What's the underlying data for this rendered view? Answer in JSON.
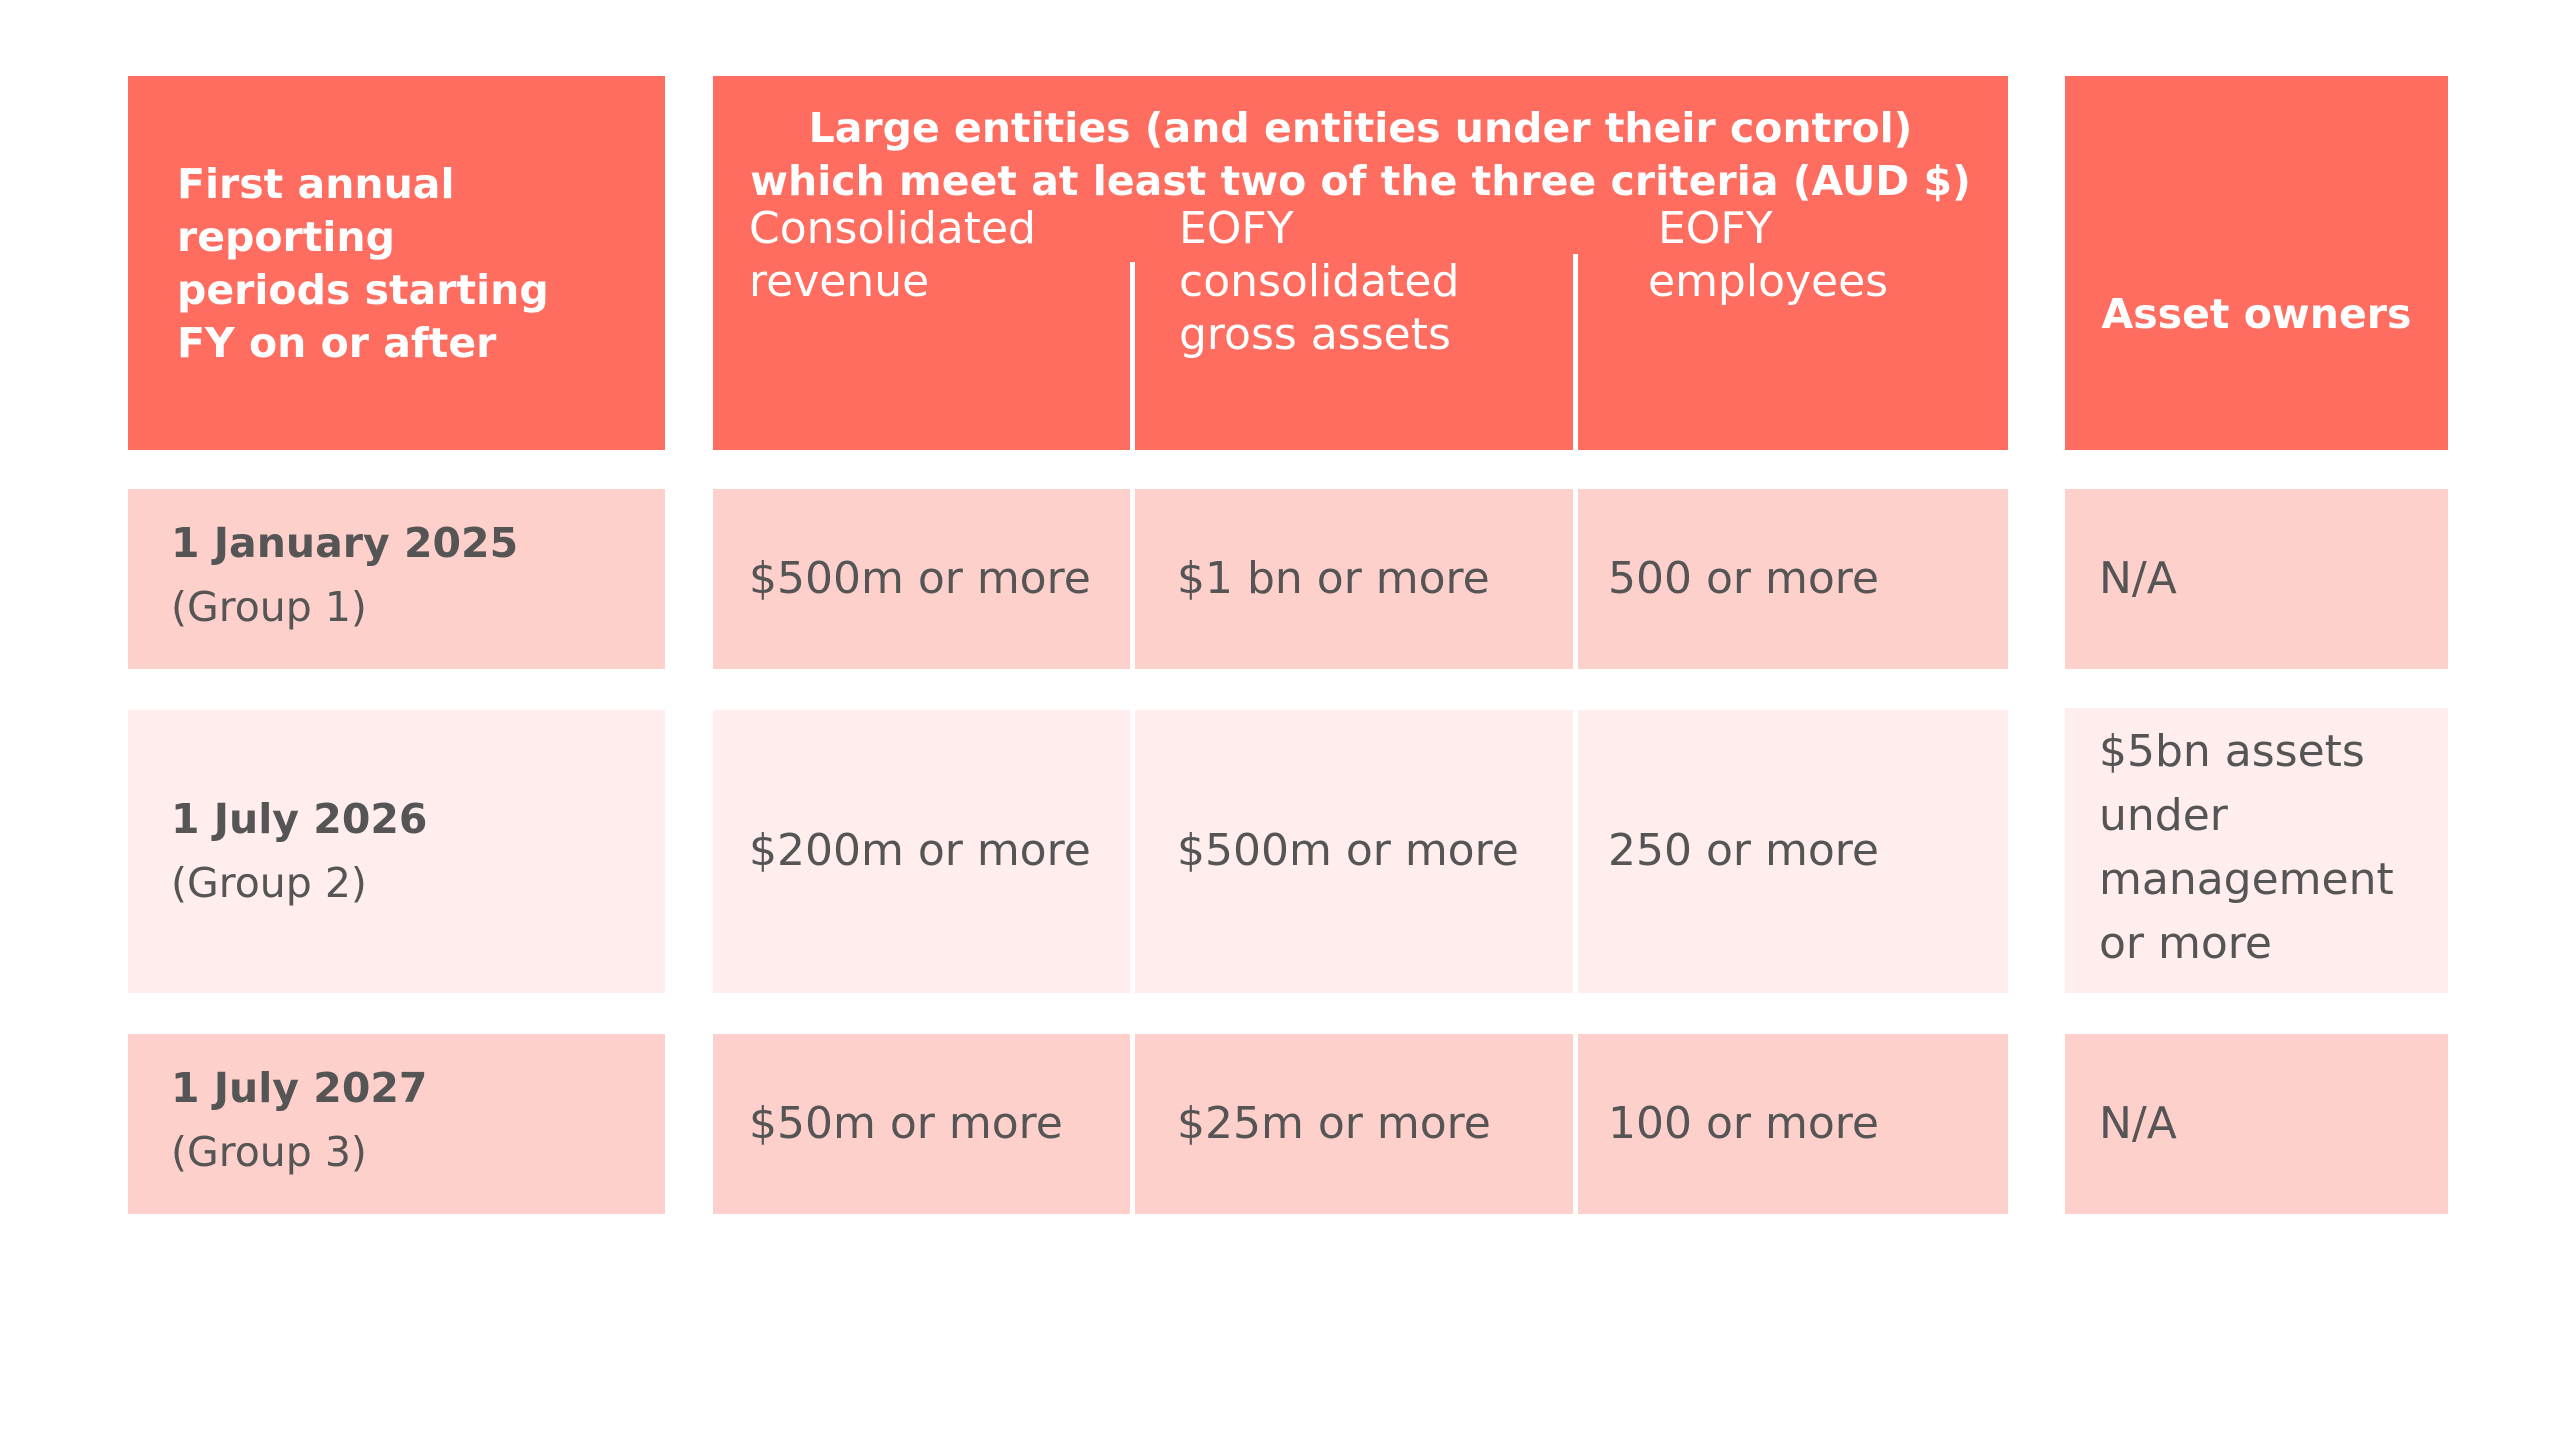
{
  "header": {
    "period_title": [
      "First annual",
      "reporting",
      "periods starting",
      "FY on or after"
    ],
    "large_entities_title": [
      "Large entities (and entities under their control)",
      "which meet at least two of the three criteria (AUD $)"
    ],
    "revenue_label": [
      "Consolidated",
      "revenue"
    ],
    "assets_label": [
      "EOFY",
      "consolidated",
      "gross assets"
    ],
    "employees_label": [
      "EOFY",
      "employees"
    ],
    "asset_owners_label": "Asset owners"
  },
  "rows": [
    {
      "date": "1 January 2025",
      "group": "(Group 1)",
      "revenue": "$500m or more",
      "assets": "$1 bn or more",
      "employees": "500 or more",
      "asset_owners": [
        "N/A"
      ]
    },
    {
      "date": "1 July 2026",
      "group": "(Group 2)",
      "revenue": "$200m or more",
      "assets": "$500m or more",
      "employees": "250 or more",
      "asset_owners": [
        "$5bn assets",
        "under",
        "management",
        "or more"
      ]
    },
    {
      "date": "1 July 2027",
      "group": "(Group 3)",
      "revenue": "$50m or more",
      "assets": "$25m or more",
      "employees": "100 or more",
      "asset_owners": [
        "N/A"
      ]
    }
  ],
  "colors": {
    "header": "#ff6d60",
    "row_dark": "#fed0cc",
    "row_light": "#ffeeed",
    "text": "#555555"
  }
}
